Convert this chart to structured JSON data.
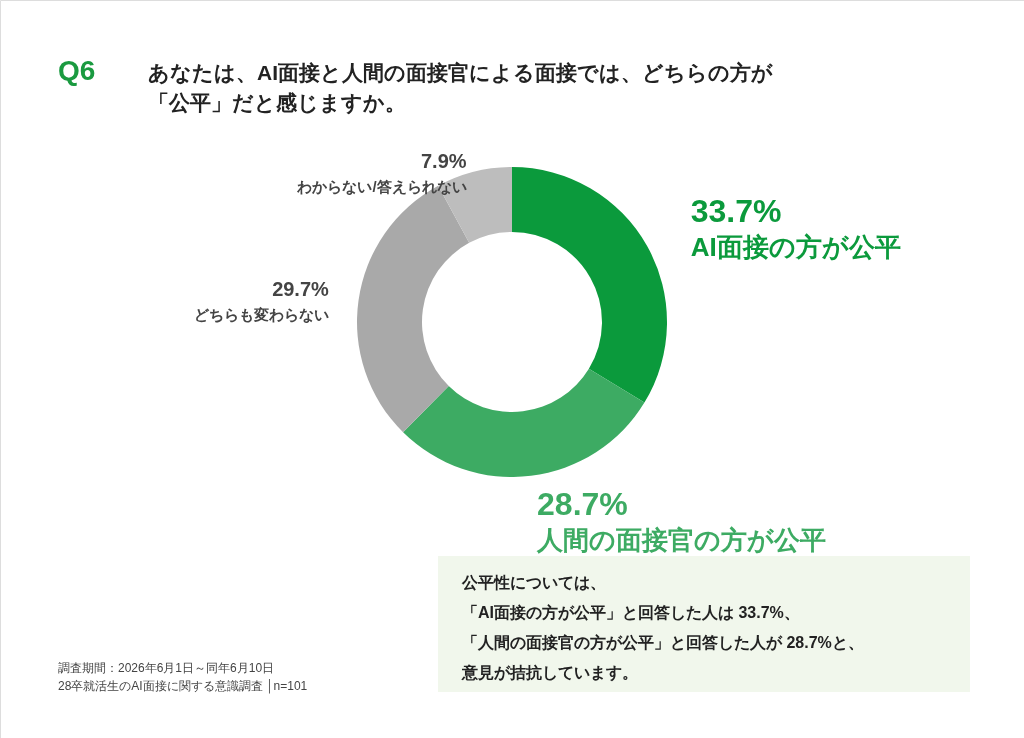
{
  "chart_data": {
    "type": "donut",
    "title": "Q6",
    "subtitle": "あなたは、AI面接と人間の面接官による面接では、どちらの方が「公平」だと感じますか。",
    "categories": [
      "AI面接の方が公平",
      "人間の面接官の方が公平",
      "どちらも変わらない",
      "わからない/答えられない"
    ],
    "values": [
      33.7,
      28.7,
      29.7,
      7.9
    ],
    "value_labels": [
      "33.7%",
      "28.7%",
      "29.7%",
      "7.9%"
    ],
    "colors": [
      "#0b9a3c",
      "#3dab63",
      "#a9a9a9",
      "#bdbdbd"
    ],
    "annotations": [
      "公平性については、",
      "「AI面接の方が公平」と回答した人は 33.7%、",
      "「人間の面接官の方が公平」と回答した人が 28.7%と、",
      "意見が拮抗しています。",
      "調査期間：2026年6月1日～同年6月10日",
      "28卒就活生のAI面接に関する意識調査 │n=101"
    ]
  }
}
